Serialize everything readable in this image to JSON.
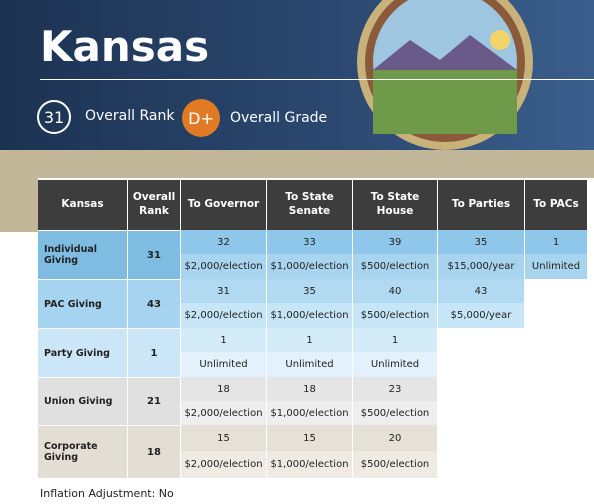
{
  "header": {
    "title": "Kansas",
    "rank": "31",
    "rank_label": "Overall Rank",
    "grade": "D+",
    "grade_label": "Overall Grade"
  },
  "table": {
    "columns": [
      "Kansas",
      "Overall Rank",
      "To Governor",
      "To State Senate",
      "To State House",
      "To Parties",
      "To PACs"
    ],
    "rows": [
      {
        "name": "Individual Giving",
        "rank": "31",
        "cells": [
          [
            "32",
            "$2,000/election"
          ],
          [
            "33",
            "$1,000/election"
          ],
          [
            "39",
            "$500/election"
          ],
          [
            "35",
            "$15,000/year"
          ],
          [
            "1",
            "Unlimited"
          ]
        ]
      },
      {
        "name": "PAC Giving",
        "rank": "43",
        "cells": [
          [
            "31",
            "$2,000/election"
          ],
          [
            "35",
            "$1,000/election"
          ],
          [
            "40",
            "$500/election"
          ],
          [
            "43",
            "$5,000/year"
          ]
        ]
      },
      {
        "name": "Party Giving",
        "rank": "1",
        "cells": [
          [
            "1",
            "Unlimited"
          ],
          [
            "1",
            "Unlimited"
          ],
          [
            "1",
            "Unlimited"
          ]
        ]
      },
      {
        "name": "Union Giving",
        "rank": "21",
        "cells": [
          [
            "18",
            "$2,000/election"
          ],
          [
            "18",
            "$1,000/election"
          ],
          [
            "23",
            "$500/election"
          ]
        ]
      },
      {
        "name": "Corporate Giving",
        "rank": "18",
        "cells": [
          [
            "15",
            "$2,000/election"
          ],
          [
            "15",
            "$1,000/election"
          ],
          [
            "20",
            "$500/election"
          ]
        ]
      }
    ]
  },
  "footer": "Inflation Adjustment:  No"
}
